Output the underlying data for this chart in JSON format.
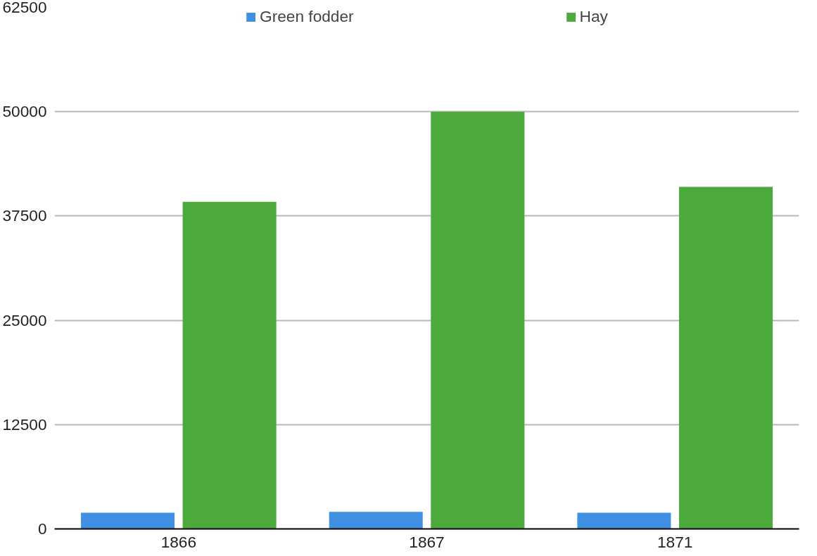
{
  "chart_data": {
    "type": "bar",
    "categories": [
      "1866",
      "1867",
      "1871"
    ],
    "series": [
      {
        "name": "Green fodder",
        "color": "#3f8fe3",
        "values": [
          1950,
          2050,
          1950
        ]
      },
      {
        "name": "Hay",
        "color": "#4caa3c",
        "values": [
          39200,
          50000,
          41000
        ]
      }
    ],
    "ylim": [
      0,
      62500
    ],
    "yticks": [
      0,
      12500,
      25000,
      37500,
      50000,
      62500
    ],
    "grid": "y",
    "legend": "top"
  }
}
